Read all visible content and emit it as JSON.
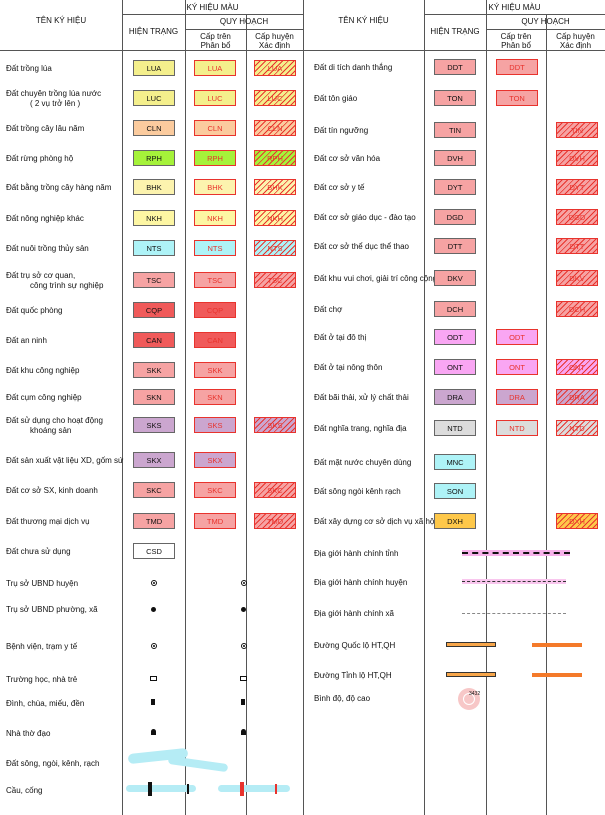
{
  "header": {
    "left_title": "TÊN KÝ HIỆU",
    "right_title": "TÊN KÝ HIỆU",
    "color_symbols": "KÝ HIỆU MÀU",
    "current": "HIỆN TRẠNG",
    "planning": "QUY HOẠCH",
    "upper_level_1": "Cấp trên",
    "upper_level_2": "Phân bổ",
    "district_level_1": "Cấp huyện",
    "district_level_2": "Xác định"
  },
  "left_rows": [
    {
      "name": "Đất trồng lúa",
      "code": "LUA",
      "color": "#f4ef8c",
      "cur": true,
      "up": true,
      "dist": true
    },
    {
      "name": "Đất chuyên trồng lúa nước",
      "name2": "( 2 vụ trở lên )",
      "code": "LUC",
      "color": "#f4ef8c",
      "cur": true,
      "up": true,
      "dist": true
    },
    {
      "name": "Đất trồng cây lâu năm",
      "code": "CLN",
      "color": "#fbcb9e",
      "cur": true,
      "up": true,
      "dist": true
    },
    {
      "name": "Đất  rừng phòng hộ",
      "code": "RPH",
      "color": "#a5f23a",
      "cur": true,
      "up": true,
      "dist": true
    },
    {
      "name": "Đất bằng trồng cây hàng năm",
      "code": "BHK",
      "color": "#fcf3ae",
      "cur": true,
      "up": true,
      "dist": true
    },
    {
      "name": "Đất nông nghiệp khác",
      "code": "NKH",
      "color": "#fdf6a3",
      "cur": true,
      "up": true,
      "dist": true
    },
    {
      "name": "Đất nuôi trồng thủy sản",
      "code": "NTS",
      "color": "#aef3f7",
      "cur": true,
      "up": true,
      "dist": true
    },
    {
      "name": "Đất trụ sở cơ quan,",
      "name2": "công trình sự nghiệp",
      "code": "TSC",
      "color": "#f6a3a3",
      "cur": true,
      "up": true,
      "dist": true
    },
    {
      "name": "Đất quốc phòng",
      "code": "CQP",
      "color": "#f05a5a",
      "cur": true,
      "up": true,
      "dist": false
    },
    {
      "name": "Đất an ninh",
      "code": "CAN",
      "color": "#f05a5a",
      "cur": true,
      "up": true,
      "dist": false
    },
    {
      "name": "Đất khu công nghiệp",
      "code": "SKK",
      "color": "#f6a3a3",
      "cur": true,
      "up": true,
      "dist": false
    },
    {
      "name": "Đất cụm công nghiệp",
      "code": "SKN",
      "color": "#f6a3a3",
      "cur": true,
      "up": true,
      "dist": false
    },
    {
      "name": "Đất sử dụng cho hoạt động",
      "name2": "khoáng sản",
      "code": "SKS",
      "color": "#cba6cf",
      "cur": true,
      "up": true,
      "dist": true
    },
    {
      "name": "Đất sản xuất vật liệu XD, gốm sứ",
      "code": "SKX",
      "color": "#cba6cf",
      "cur": true,
      "up": true,
      "dist": false
    },
    {
      "name": "Đất cơ sở SX, kinh doanh",
      "code": "SKC",
      "color": "#f6a3a3",
      "cur": true,
      "up": true,
      "dist": true
    },
    {
      "name": "Đất thương mại dịch vụ",
      "code": "TMD",
      "color": "#f6a3a3",
      "cur": true,
      "up": true,
      "dist": true
    },
    {
      "name": "Đất chưa sử dụng",
      "code": "CSD",
      "color": "#ffffff",
      "cur": true,
      "up": false,
      "dist": false
    },
    {
      "name": "Trụ sở UBND huyện",
      "sym": "ring"
    },
    {
      "name": "Trụ sở UBND phường, xã",
      "sym": "dot"
    },
    {
      "name": "Bệnh viện, trạm y tế",
      "sym": "hospital"
    },
    {
      "name": "Trường học, nhà trẻ",
      "sym": "school"
    },
    {
      "name": "Đình, chùa, miếu, đền",
      "sym": "temple"
    },
    {
      "name": "Nhà thờ đạo",
      "sym": "church"
    },
    {
      "name": "Đất sông, ngòi, kênh, rạch",
      "sym": "river"
    },
    {
      "name": "Cầu, cống",
      "sym": "bridge"
    }
  ],
  "right_rows": [
    {
      "name": "Đất di tích danh thắng",
      "code": "DDT",
      "color": "#f6a3a3",
      "cur": true,
      "up": true,
      "dist": false
    },
    {
      "name": "Đất tôn giáo",
      "code": "TON",
      "color": "#f6a3a3",
      "cur": true,
      "up": true,
      "dist": false
    },
    {
      "name": "Đất tín ngưỡng",
      "code": "TIN",
      "color": "#f6a3a3",
      "cur": true,
      "up": false,
      "dist": true
    },
    {
      "name": "Đất cơ sở văn hóa",
      "code": "DVH",
      "color": "#f6a3a3",
      "cur": true,
      "up": false,
      "dist": true
    },
    {
      "name": "Đất cơ sở y tế",
      "code": "DYT",
      "color": "#f6a3a3",
      "cur": true,
      "up": false,
      "dist": true
    },
    {
      "name": "Đất cơ sở giáo dục - đào tạo",
      "code": "DGD",
      "color": "#f6a3a3",
      "cur": true,
      "up": false,
      "dist": true
    },
    {
      "name": "Đất cơ sở thể dục thể thao",
      "code": "DTT",
      "color": "#f6a3a3",
      "cur": true,
      "up": false,
      "dist": true
    },
    {
      "name": "Đất khu vui chơi, giải trí công cộng",
      "code": "DKV",
      "color": "#f6a3a3",
      "cur": true,
      "up": false,
      "dist": true
    },
    {
      "name": "Đất chợ",
      "code": "DCH",
      "color": "#f6a3a3",
      "cur": true,
      "up": false,
      "dist": true
    },
    {
      "name": "Đất ở tại đô thị",
      "code": "ODT",
      "color": "#f9a6f3",
      "cur": true,
      "up": true,
      "dist": false
    },
    {
      "name": "Đất ở tại nông thôn",
      "code": "ONT",
      "color": "#f9a6f3",
      "cur": true,
      "up": true,
      "dist": true
    },
    {
      "name": "Đất bãi thải, xử lý chất thải",
      "code": "DRA",
      "color": "#cba6cf",
      "cur": true,
      "up": true,
      "dist": true
    },
    {
      "name": "Đất nghĩa trang, nghĩa địa",
      "code": "NTD",
      "color": "#dcdcdc",
      "cur": true,
      "up": true,
      "dist": true
    },
    {
      "name": "Đất mặt nước chuyên dùng",
      "code": "MNC",
      "color": "#aef3f7",
      "cur": true,
      "up": false,
      "dist": false
    },
    {
      "name": "Đất sông ngòi kênh rạch",
      "code": "SON",
      "color": "#aef3f7",
      "cur": true,
      "up": false,
      "dist": false
    },
    {
      "name": "Đất xây dựng cơ sở dịch vụ xã hội",
      "code": "DXH",
      "color": "#fec84a",
      "cur": true,
      "up": false,
      "dist": true
    },
    {
      "name": "Địa giới hành chính tỉnh",
      "line": "province"
    },
    {
      "name": "Địa giới hành chính huyện",
      "line": "district"
    },
    {
      "name": "Địa giới hành chính xã",
      "line": "commune"
    },
    {
      "name": "Đường Quốc lộ HT,QH",
      "line": "national"
    },
    {
      "name": "Đường Tỉnh lộ HT,QH",
      "line": "provincial"
    },
    {
      "name": "Bình độ, độ cao",
      "line": "contour"
    }
  ],
  "elevation_label": "3432"
}
